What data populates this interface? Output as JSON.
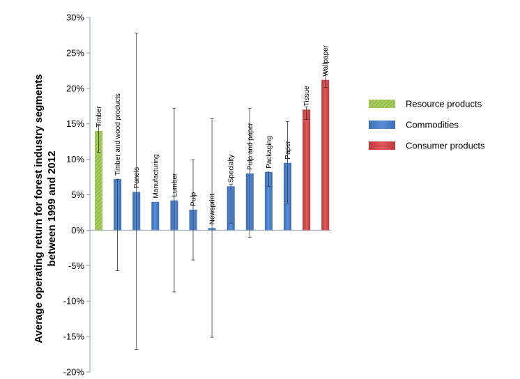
{
  "chart_data": {
    "type": "bar",
    "ylabel": "Average operating return for forest industry segments between 1999 and 2012",
    "ylim": [
      -20,
      30
    ],
    "y_ticks": [
      30,
      25,
      20,
      15,
      10,
      5,
      0,
      -5,
      -10,
      -15,
      -20
    ],
    "y_tick_labels": [
      "30%",
      "25%",
      "20%",
      "15%",
      "10%",
      "5%",
      "0%",
      "-5%",
      "-10%",
      "-15%",
      "-20%"
    ],
    "grid": false,
    "legend_position": "right",
    "categories": [
      "Timber",
      "Timber and wood products",
      "Panels",
      "Manufacturing",
      "Lumber",
      "Pulp",
      "Newsprint",
      "Specialty",
      "Pulp and paper",
      "Packaging",
      "Paper",
      "Tissue",
      "Wallpaper"
    ],
    "values": [
      14.0,
      7.2,
      5.4,
      4.0,
      4.2,
      2.9,
      0.3,
      6.2,
      8.0,
      8.2,
      9.5,
      17.0,
      21.2
    ],
    "error_low": [
      11.0,
      -5.7,
      -16.8,
      4.0,
      -8.7,
      -4.2,
      -15.1,
      1.0,
      -1.0,
      6.2,
      3.8,
      15.6,
      20.1
    ],
    "error_high": [
      14.9,
      7.2,
      27.8,
      4.0,
      17.2,
      9.9,
      15.7,
      6.5,
      17.2,
      8.2,
      15.3,
      17.4,
      22.2
    ],
    "groups": [
      "Resource products",
      "Commodities",
      "Commodities",
      "Commodities",
      "Commodities",
      "Commodities",
      "Commodities",
      "Commodities",
      "Commodities",
      "Commodities",
      "Commodities",
      "Consumer products",
      "Consumer products"
    ],
    "legend": [
      {
        "name": "Resource products",
        "color": "#92c14d",
        "pattern": "hatch"
      },
      {
        "name": "Commodities",
        "color": "#4a7fc8",
        "pattern": "solid"
      },
      {
        "name": "Consumer products",
        "color": "#d04a4a",
        "pattern": "solid"
      }
    ]
  }
}
